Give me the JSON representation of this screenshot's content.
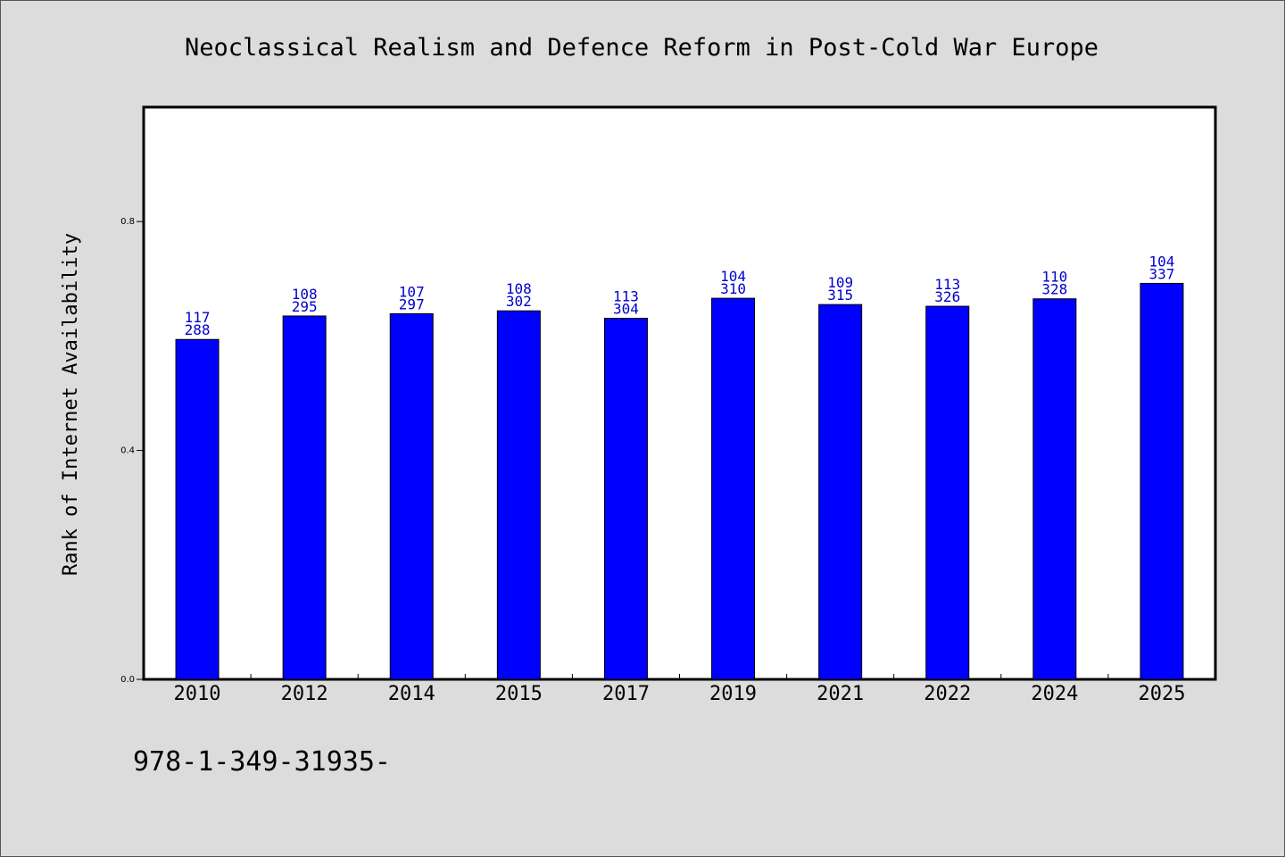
{
  "chart_data": {
    "type": "bar",
    "title": "Neoclassical Realism and Defence Reform in Post-Cold War Europe",
    "ylabel": "Rank of Internet Availability",
    "xlabel": "",
    "ylim": [
      0,
      1.0
    ],
    "yticks": [
      "0.0",
      "0.4",
      "0.8"
    ],
    "ytick_values": [
      0.0,
      0.4,
      0.8
    ],
    "categories": [
      "2010",
      "2012",
      "2014",
      "2015",
      "2017",
      "2019",
      "2021",
      "2022",
      "2024",
      "2025"
    ],
    "values": [
      0.594,
      0.635,
      0.639,
      0.644,
      0.631,
      0.666,
      0.655,
      0.652,
      0.665,
      0.692
    ],
    "labels_top": [
      "117",
      "108",
      "107",
      "108",
      "113",
      "104",
      "109",
      "113",
      "110",
      "104"
    ],
    "labels_bottom": [
      "288",
      "295",
      "297",
      "302",
      "304",
      "310",
      "315",
      "326",
      "328",
      "337"
    ],
    "grid": false,
    "legend": "none",
    "bar_color": "#0000ff",
    "label_color": "#0000cc"
  },
  "footnote": "978-1-349-31935-"
}
